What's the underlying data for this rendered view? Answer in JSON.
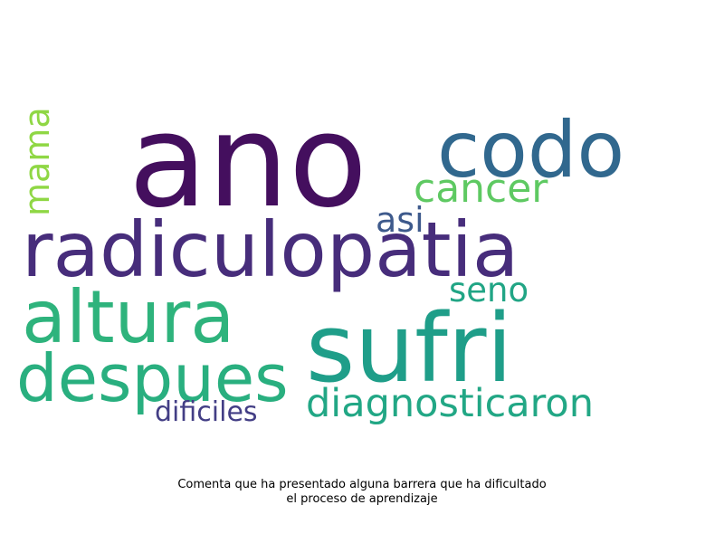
{
  "figure": {
    "caption_line1": "Comenta que ha presentado alguna barrera que ha dificultado",
    "caption_line2": "el proceso de aprendizaje"
  },
  "wordcloud": {
    "words": [
      {
        "text": "ano",
        "color": "#440f5e"
      },
      {
        "text": "codo",
        "color": "#31688e"
      },
      {
        "text": "cancer",
        "color": "#5ec962"
      },
      {
        "text": "mama",
        "color": "#8fd744"
      },
      {
        "text": "asi",
        "color": "#3e5a8c"
      },
      {
        "text": "radiculopatia",
        "color": "#472d7b"
      },
      {
        "text": "seno",
        "color": "#21a585"
      },
      {
        "text": "altura",
        "color": "#2eb37c"
      },
      {
        "text": "sufri",
        "color": "#1f9e89"
      },
      {
        "text": "despues",
        "color": "#29af7f"
      },
      {
        "text": "diagnosticaron",
        "color": "#22a785"
      },
      {
        "text": "dificiles",
        "color": "#433e85"
      }
    ]
  }
}
